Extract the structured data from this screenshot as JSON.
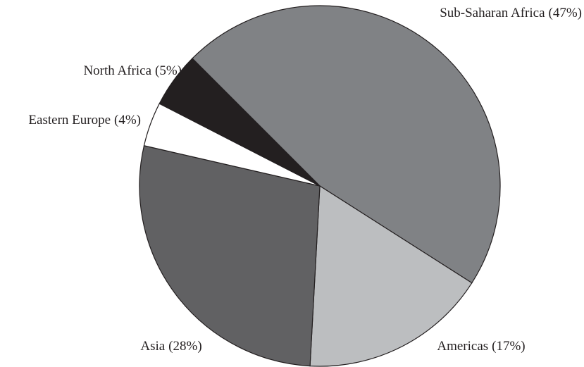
{
  "chart_data": {
    "type": "pie",
    "categories": [
      "Sub-Saharan Africa",
      "Americas",
      "Asia",
      "Eastern Europe",
      "North Africa"
    ],
    "values": [
      47,
      17,
      28,
      4,
      5
    ],
    "value_labels": [
      "(47%)",
      "(17%)",
      "(28%)",
      "(4%)",
      "(5%)"
    ],
    "colors": [
      "#808285",
      "#bcbec0",
      "#616163",
      "#ffffff",
      "#231f20"
    ]
  }
}
